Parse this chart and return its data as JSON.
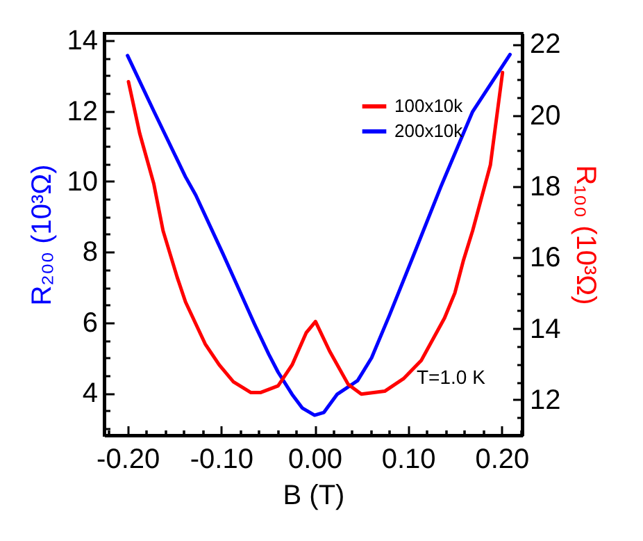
{
  "chart_data": {
    "type": "line",
    "xlabel": "B (T)",
    "ylabel": "R₂₀₀ (10³Ω)",
    "y2label": "R₁₀₀ (10³Ω)",
    "annotations": [
      "T=1.0 K"
    ],
    "series": [
      {
        "name": "100x10k",
        "color": "#ff0000",
        "axis": "y2",
        "x": [
          -0.199,
          -0.187,
          -0.172,
          -0.162,
          -0.147,
          -0.138,
          -0.117,
          -0.102,
          -0.087,
          -0.068,
          -0.058,
          -0.039,
          -0.024,
          -0.009,
          0.001,
          0.016,
          0.036,
          0.05,
          0.075,
          0.095,
          0.114,
          0.139,
          0.15,
          0.159,
          0.169,
          0.188,
          0.201
        ],
        "values": [
          20.94,
          19.49,
          18.08,
          16.75,
          15.45,
          14.75,
          13.57,
          12.98,
          12.51,
          12.2,
          12.2,
          12.39,
          12.98,
          13.88,
          14.2,
          13.37,
          12.43,
          12.16,
          12.24,
          12.59,
          13.1,
          14.3,
          15.0,
          15.9,
          16.75,
          18.6,
          21.2
        ]
      },
      {
        "name": "200x10k",
        "color": "#0000ff",
        "axis": "y",
        "x": [
          -0.2,
          -0.172,
          -0.138,
          -0.127,
          -0.098,
          -0.087,
          -0.064,
          -0.049,
          -0.039,
          -0.024,
          -0.013,
          0,
          0.01,
          0.024,
          0.046,
          0.061,
          0.08,
          0.105,
          0.135,
          0.169,
          0.209
        ],
        "values": [
          13.57,
          12.0,
          10.13,
          9.61,
          7.95,
          7.3,
          5.94,
          5.1,
          4.59,
          3.96,
          3.57,
          3.37,
          3.45,
          3.96,
          4.35,
          5.0,
          6.2,
          7.85,
          9.85,
          11.98,
          13.6
        ]
      }
    ],
    "xlim": [
      -0.225,
      0.222
    ],
    "xticks": [
      {
        "value": -0.22,
        "label": null
      },
      {
        "value": -0.2,
        "label": "-0.20"
      },
      {
        "value": -0.18,
        "label": null
      },
      {
        "value": -0.16,
        "label": null
      },
      {
        "value": -0.14,
        "label": null
      },
      {
        "value": -0.12,
        "label": null
      },
      {
        "value": -0.1,
        "label": "-0.10"
      },
      {
        "value": -0.08,
        "label": null
      },
      {
        "value": -0.06,
        "label": null
      },
      {
        "value": -0.04,
        "label": null
      },
      {
        "value": -0.02,
        "label": null
      },
      {
        "value": 0,
        "label": "0.00"
      },
      {
        "value": 0.02,
        "label": null
      },
      {
        "value": 0.04,
        "label": null
      },
      {
        "value": 0.06,
        "label": null
      },
      {
        "value": 0.08,
        "label": null
      },
      {
        "value": 0.1,
        "label": "0.10"
      },
      {
        "value": 0.12,
        "label": null
      },
      {
        "value": 0.14,
        "label": null
      },
      {
        "value": 0.16,
        "label": null
      },
      {
        "value": 0.18,
        "label": null
      },
      {
        "value": 0.2,
        "label": "0.20"
      },
      {
        "value": 0.22,
        "label": null
      }
    ],
    "ylim": [
      2.8,
      14.2
    ],
    "yticks": [
      {
        "value": 3,
        "label": null
      },
      {
        "value": 3.5,
        "label": null
      },
      4,
      {
        "value": 4.5,
        "label": null
      },
      {
        "value": 5,
        "label": null
      },
      {
        "value": 5.5,
        "label": null
      },
      6,
      {
        "value": 6.5,
        "label": null
      },
      {
        "value": 7,
        "label": null
      },
      {
        "value": 7.5,
        "label": null
      },
      8,
      {
        "value": 8.5,
        "label": null
      },
      {
        "value": 9,
        "label": null
      },
      {
        "value": 9.5,
        "label": null
      },
      10,
      {
        "value": 10.5,
        "label": null
      },
      {
        "value": 11,
        "label": null
      },
      {
        "value": 11.5,
        "label": null
      },
      12,
      {
        "value": 12.5,
        "label": null
      },
      {
        "value": 13,
        "label": null
      },
      {
        "value": 13.5,
        "label": null
      },
      14
    ],
    "y2lim": [
      11.0,
      22.3
    ],
    "y2ticks": [
      {
        "value": 11,
        "label": null
      },
      {
        "value": 11.5,
        "label": null
      },
      12,
      {
        "value": 12.5,
        "label": null
      },
      {
        "value": 13,
        "label": null
      },
      {
        "value": 13.5,
        "label": null
      },
      14,
      {
        "value": 14.5,
        "label": null
      },
      {
        "value": 15,
        "label": null
      },
      {
        "value": 15.5,
        "label": null
      },
      16,
      {
        "value": 16.5,
        "label": null
      },
      {
        "value": 17,
        "label": null
      },
      {
        "value": 17.5,
        "label": null
      },
      18,
      {
        "value": 18.5,
        "label": null
      },
      {
        "value": 19,
        "label": null
      },
      {
        "value": 19.5,
        "label": null
      },
      20,
      {
        "value": 20.5,
        "label": null
      },
      {
        "value": 21,
        "label": null
      },
      {
        "value": 21.5,
        "label": null
      },
      22
    ],
    "grid": false,
    "legend": "top right"
  }
}
